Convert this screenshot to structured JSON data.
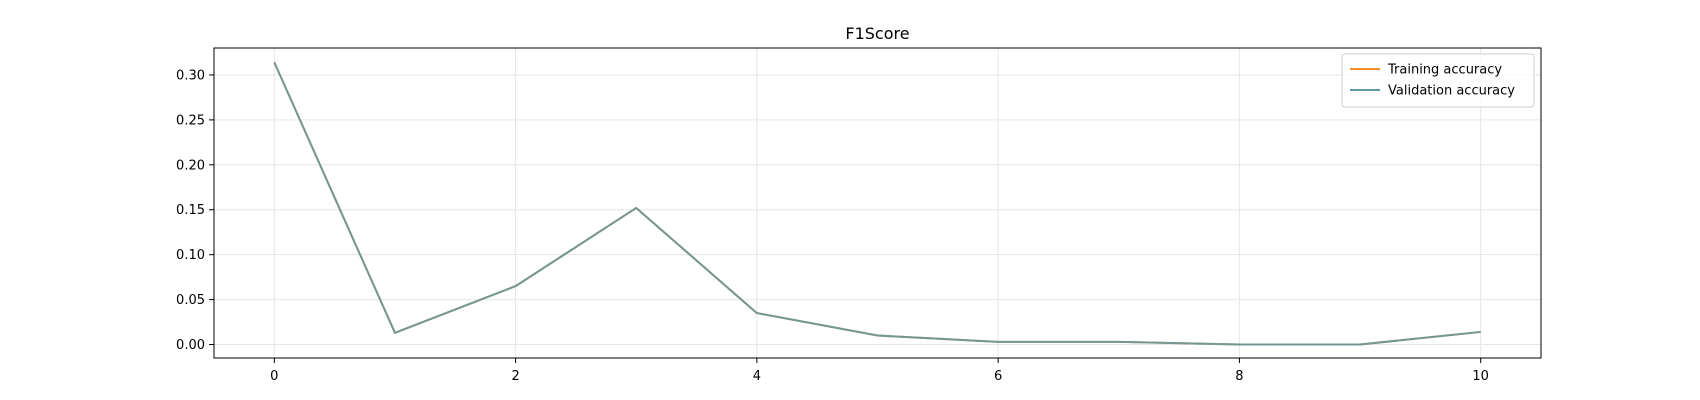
{
  "chart_data": {
    "type": "line",
    "title": "F1Score",
    "xlabel": "",
    "ylabel": "",
    "x": [
      0,
      1,
      2,
      3,
      4,
      5,
      6,
      7,
      8,
      9,
      10
    ],
    "xlim": [
      -0.5,
      10.5
    ],
    "ylim": [
      -0.015,
      0.33
    ],
    "xticks": [
      0,
      2,
      4,
      6,
      8,
      10
    ],
    "xtick_labels": [
      "0",
      "2",
      "4",
      "6",
      "8",
      "10"
    ],
    "yticks": [
      0.0,
      0.05,
      0.1,
      0.15,
      0.2,
      0.25,
      0.3
    ],
    "ytick_labels": [
      "0.00",
      "0.05",
      "0.10",
      "0.15",
      "0.20",
      "0.25",
      "0.30"
    ],
    "grid": true,
    "legend_position": "top-right",
    "series": [
      {
        "name": "Training accuracy",
        "color": "#f28e2b",
        "values": [
          0.314,
          0.013,
          0.065,
          0.152,
          0.035,
          0.01,
          0.003,
          0.003,
          0.0,
          0.0,
          0.014
        ]
      },
      {
        "name": "Validation accuracy",
        "color": "#5b9aa8",
        "values": [
          0.314,
          0.013,
          0.065,
          0.152,
          0.035,
          0.01,
          0.003,
          0.003,
          0.0,
          0.0,
          0.014
        ]
      }
    ]
  }
}
